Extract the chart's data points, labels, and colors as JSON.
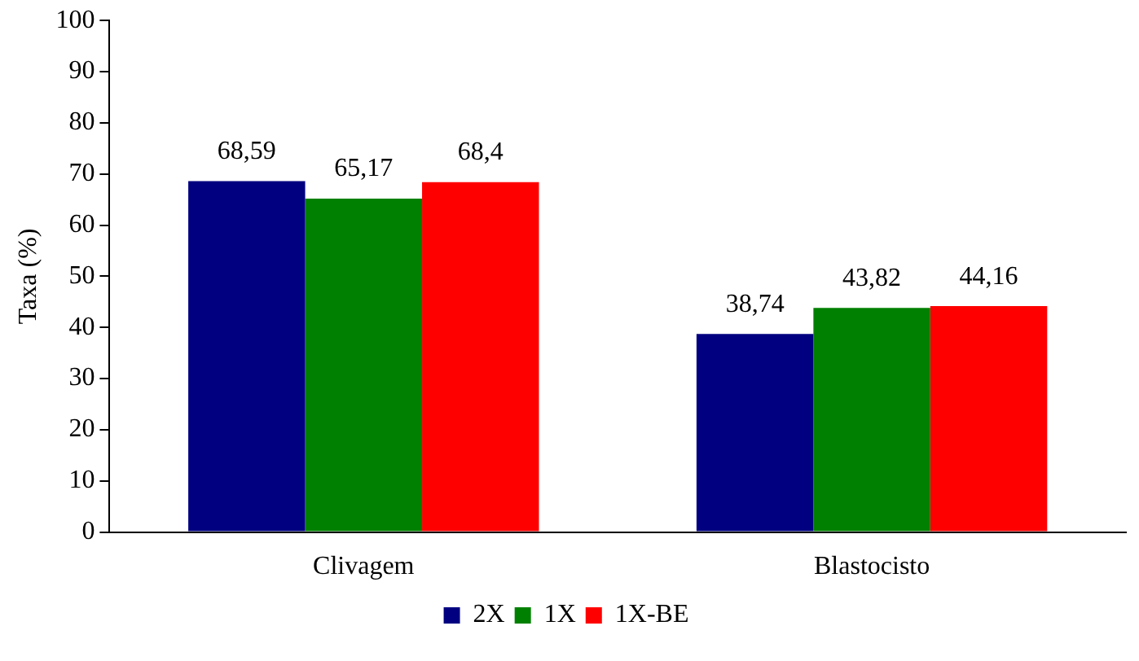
{
  "chart_data": {
    "type": "bar",
    "ylabel": "Taxa (%)",
    "categories": [
      "Clivagem",
      "Blastocisto"
    ],
    "series": [
      {
        "name": "2X",
        "color": "#000080",
        "values": [
          68.59,
          38.74
        ],
        "value_labels": [
          "68,59",
          "38,74"
        ]
      },
      {
        "name": "1X",
        "color": "#008000",
        "values": [
          65.17,
          43.82
        ],
        "value_labels": [
          "65,17",
          "43,82"
        ]
      },
      {
        "name": "1X-BE",
        "color": "#ff0000",
        "values": [
          68.4,
          44.16
        ],
        "value_labels": [
          "68,4",
          "44,16"
        ]
      }
    ],
    "ylim": [
      0,
      100
    ],
    "yticks": [
      0,
      10,
      20,
      30,
      40,
      50,
      60,
      70,
      80,
      90,
      100
    ],
    "grid": false,
    "legend": "bottom"
  }
}
